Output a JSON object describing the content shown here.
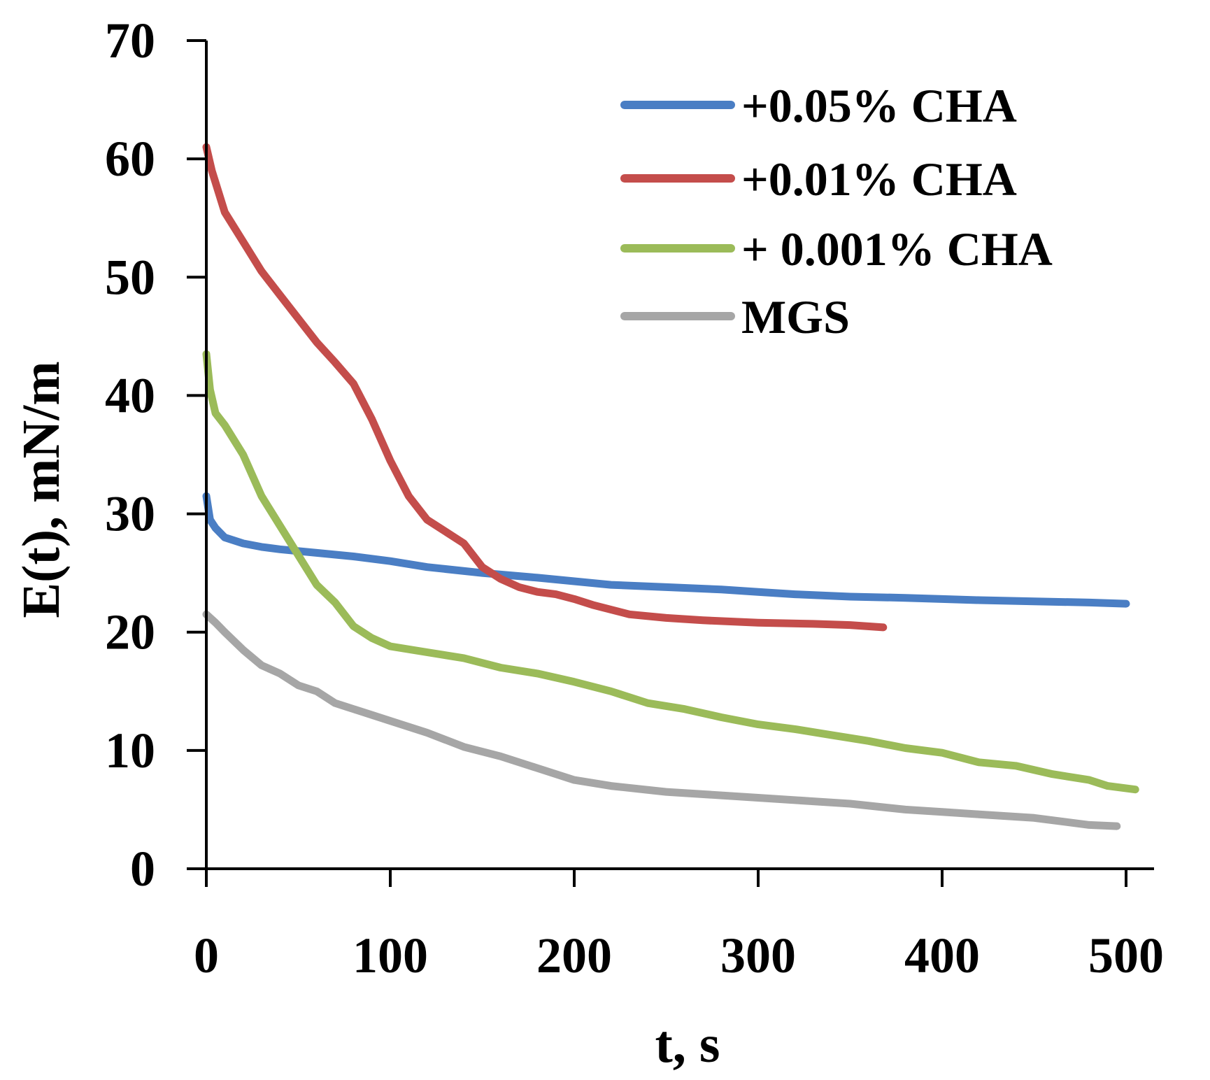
{
  "chart_data": {
    "type": "line",
    "xlabel": "t, s",
    "ylabel": "E(t), mN/m",
    "xlim": [
      0,
      520
    ],
    "ylim": [
      0,
      70
    ],
    "xticks": [
      0,
      100,
      200,
      300,
      400,
      500
    ],
    "yticks": [
      0,
      10,
      20,
      30,
      40,
      50,
      60,
      70
    ],
    "xtick_labels": [
      "0",
      "100",
      "200",
      "300",
      "400",
      "500"
    ],
    "ytick_labels": [
      "0",
      "10",
      "20",
      "30",
      "40",
      "50",
      "60",
      "70"
    ],
    "grid": false,
    "legend_position": "top-right",
    "series": [
      {
        "name": "+0.05% CHA",
        "color": "#4A7EC4",
        "x": [
          0,
          2,
          5,
          10,
          20,
          30,
          40,
          60,
          80,
          100,
          120,
          150,
          180,
          200,
          220,
          250,
          280,
          300,
          320,
          350,
          380,
          400,
          420,
          450,
          480,
          500
        ],
        "y": [
          31.5,
          29.5,
          28.8,
          28.0,
          27.5,
          27.2,
          27.0,
          26.7,
          26.4,
          26.0,
          25.5,
          25.0,
          24.6,
          24.3,
          24.0,
          23.8,
          23.6,
          23.4,
          23.2,
          23.0,
          22.9,
          22.8,
          22.7,
          22.6,
          22.5,
          22.4
        ]
      },
      {
        "name": "+0.01% CHA",
        "color": "#C44D4B",
        "x": [
          0,
          3,
          10,
          20,
          30,
          40,
          50,
          60,
          70,
          80,
          90,
          100,
          110,
          120,
          130,
          140,
          150,
          160,
          170,
          180,
          190,
          200,
          210,
          230,
          250,
          270,
          300,
          330,
          350,
          368
        ],
        "y": [
          61.0,
          59.0,
          55.5,
          53.0,
          50.5,
          48.5,
          46.5,
          44.5,
          42.8,
          41.0,
          38.0,
          34.5,
          31.5,
          29.5,
          28.5,
          27.5,
          25.5,
          24.5,
          23.8,
          23.4,
          23.2,
          22.8,
          22.3,
          21.5,
          21.2,
          21.0,
          20.8,
          20.7,
          20.6,
          20.4
        ]
      },
      {
        "name": "+ 0.001% CHA",
        "color": "#9BBB59",
        "x": [
          0,
          2,
          5,
          10,
          20,
          30,
          40,
          50,
          60,
          70,
          80,
          90,
          100,
          120,
          140,
          160,
          180,
          200,
          220,
          240,
          260,
          280,
          300,
          320,
          340,
          360,
          380,
          400,
          420,
          440,
          460,
          480,
          490,
          505
        ],
        "y": [
          43.5,
          40.5,
          38.5,
          37.5,
          35.0,
          31.5,
          29.0,
          26.5,
          24.0,
          22.5,
          20.5,
          19.5,
          18.8,
          18.3,
          17.8,
          17.0,
          16.5,
          15.8,
          15.0,
          14.0,
          13.5,
          12.8,
          12.2,
          11.8,
          11.3,
          10.8,
          10.2,
          9.8,
          9.0,
          8.7,
          8.0,
          7.5,
          7.0,
          6.7
        ]
      },
      {
        "name": "MGS",
        "color": "#A6A6A6",
        "x": [
          0,
          5,
          10,
          20,
          30,
          40,
          50,
          60,
          70,
          80,
          90,
          100,
          120,
          140,
          160,
          180,
          200,
          220,
          250,
          280,
          300,
          330,
          350,
          380,
          400,
          420,
          450,
          480,
          495
        ],
        "y": [
          21.5,
          20.8,
          20.0,
          18.5,
          17.2,
          16.5,
          15.5,
          15.0,
          14.0,
          13.5,
          13.0,
          12.5,
          11.5,
          10.3,
          9.5,
          8.5,
          7.5,
          7.0,
          6.5,
          6.2,
          6.0,
          5.7,
          5.5,
          5.0,
          4.8,
          4.6,
          4.3,
          3.7,
          3.6
        ]
      }
    ]
  }
}
